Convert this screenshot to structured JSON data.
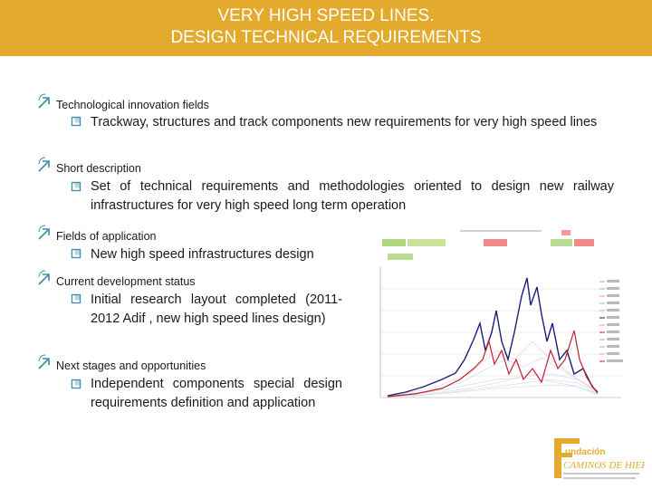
{
  "title": {
    "line1": "VERY HIGH SPEED LINES.",
    "line2": "DESIGN TECHNICAL REQUIREMENTS"
  },
  "sections": [
    {
      "heading": "Technological innovation fields",
      "bullet": "Trackway, structures and track components new requirements for very high speed lines"
    },
    {
      "heading": "Short description",
      "bullet": "Set of technical requirements and methodologies oriented to design new railway infrastructures for very high speed long term operation"
    },
    {
      "heading": "Fields of application",
      "bullet": "New high speed infrastructures design"
    },
    {
      "heading": "Current development status",
      "bullet": "Initial research layout completed (2011-2012 Adif , new high speed lines design)"
    },
    {
      "heading": "Next stages and opportunities",
      "bullet": "Independent components special design requirements definition and application"
    }
  ],
  "logo": {
    "letter": "F",
    "line1": "undación",
    "line2": "CAMINOS DE HIERRO"
  },
  "colors": {
    "title_bar": "#e3aa2e",
    "bullet": "#3b8fa3",
    "arrow": "#3b8fa3",
    "series_navy": "#1c1f7a",
    "series_red": "#c0212c",
    "logo": "#e3aa2e"
  }
}
